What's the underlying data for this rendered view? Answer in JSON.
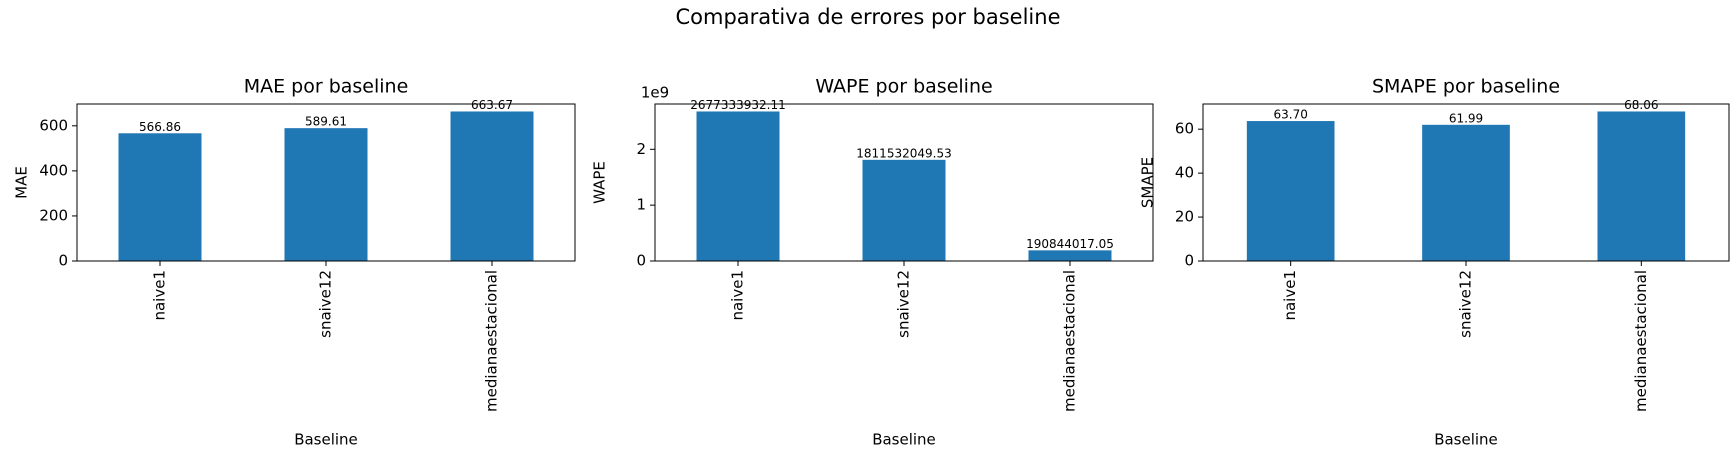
{
  "title": "Comparativa de errores por baseline",
  "chart_data": [
    {
      "type": "bar",
      "title": "MAE por baseline",
      "x_label": "Baseline",
      "y_label": "MAE",
      "categories": [
        "naive1",
        "snaive12",
        "medianaestacional"
      ],
      "values": [
        566.86,
        589.61,
        663.67
      ],
      "color": "#1f77b4",
      "ylim": [
        0,
        696.85
      ],
      "yticks": [
        0,
        200,
        400,
        600
      ]
    },
    {
      "type": "bar",
      "title": "WAPE por baseline",
      "x_label": "Baseline",
      "y_label": "WAPE",
      "y_offset_label": "1e9",
      "categories": [
        "naive1",
        "snaive12",
        "medianaestacional"
      ],
      "values": [
        2677333932.11,
        1811532049.53,
        190844017.05
      ],
      "color": "#1f77b4",
      "ylim": [
        0,
        2811200628.7
      ],
      "yticks": [
        0,
        {
          "value": 1000000000,
          "label": "1"
        },
        {
          "value": 2000000000,
          "label": "2"
        }
      ]
    },
    {
      "type": "bar",
      "title": "SMAPE por baseline",
      "x_label": "Baseline",
      "y_label": "SMAPE",
      "categories": [
        "naive1",
        "snaive12",
        "medianaestacional"
      ],
      "values": [
        63.7,
        61.99,
        68.06
      ],
      "value_labels": [
        "63.70",
        "61.99",
        "68.06"
      ],
      "color": "#1f77b4",
      "ylim": [
        0,
        71.463
      ],
      "yticks": [
        0,
        20,
        40,
        60
      ]
    }
  ]
}
